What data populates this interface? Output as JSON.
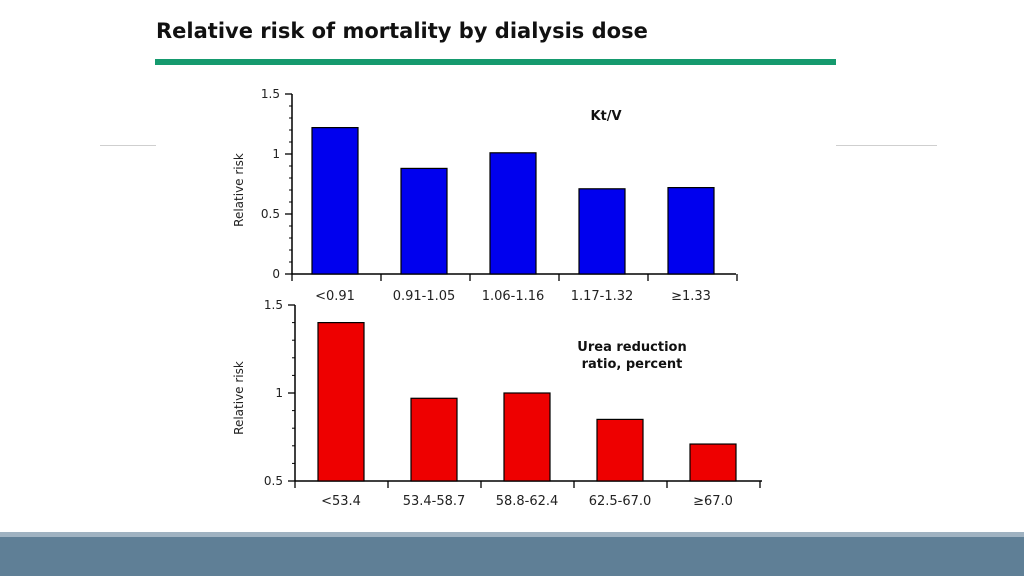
{
  "slide": {
    "title": "Relative risk of mortality by dialysis dose"
  },
  "colors": {
    "accent_rule": "#159a6e",
    "footer": "#5f7f96",
    "footer_thin": "#9fb2c1"
  },
  "chart_data": [
    {
      "type": "bar",
      "annotation": "Kt/V",
      "ylabel": "Relative risk",
      "xlabel": "",
      "categories": [
        "<0.91",
        "0.91-1.05",
        "1.06-1.16",
        "1.17-1.32",
        "≥1.33"
      ],
      "values": [
        1.22,
        0.88,
        1.01,
        0.71,
        0.72
      ],
      "ylim": [
        0,
        1.5
      ],
      "yticks": [
        0,
        0.5,
        1,
        1.5
      ],
      "ytick_labels": [
        "0",
        "0.5",
        "1",
        "1.5"
      ],
      "bar_color": "#0000ee",
      "grid": false
    },
    {
      "type": "bar",
      "annotation": "Urea reduction ratio, percent",
      "ylabel": "Relative risk",
      "xlabel": "",
      "categories": [
        "<53.4",
        "53.4-58.7",
        "58.8-62.4",
        "62.5-67.0",
        "≥67.0"
      ],
      "values": [
        1.4,
        0.97,
        1.0,
        0.85,
        0.71
      ],
      "ylim": [
        0.5,
        1.5
      ],
      "yticks": [
        0.5,
        1,
        1.5
      ],
      "ytick_labels": [
        "0.5",
        "1",
        "1.5"
      ],
      "bar_color": "#ee0000",
      "grid": false
    }
  ]
}
